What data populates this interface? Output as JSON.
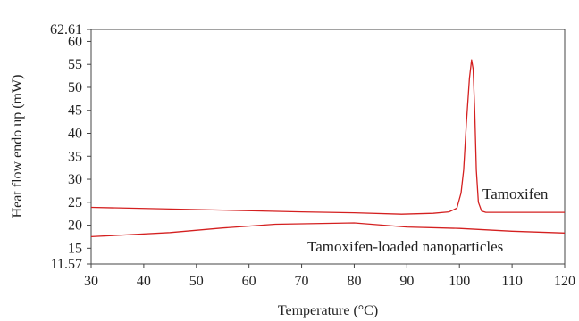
{
  "chart_data": {
    "type": "line",
    "title": "",
    "xlabel": "Temperature (°C)",
    "ylabel": "Heat flow endo up (mW)",
    "xlim": [
      30,
      120
    ],
    "ylim": [
      11.57,
      62.61
    ],
    "x_ticks": [
      "30",
      "40",
      "50",
      "60",
      "70",
      "80",
      "90",
      "100",
      "110",
      "120"
    ],
    "y_ticks": [
      "11.57",
      "15",
      "20",
      "25",
      "30",
      "35",
      "40",
      "45",
      "50",
      "55",
      "60",
      "62.61"
    ],
    "grid": false,
    "series": [
      {
        "name": "Tamoxifen",
        "color": "#d42020",
        "points": [
          [
            30,
            23.9
          ],
          [
            50,
            23.4
          ],
          [
            70,
            22.9
          ],
          [
            80,
            22.7
          ],
          [
            89,
            22.4
          ],
          [
            95,
            22.6
          ],
          [
            98,
            22.9
          ],
          [
            99.5,
            23.7
          ],
          [
            100.3,
            27
          ],
          [
            100.8,
            32
          ],
          [
            101.3,
            42
          ],
          [
            101.9,
            52
          ],
          [
            102.3,
            56
          ],
          [
            102.6,
            54
          ],
          [
            102.9,
            45
          ],
          [
            103.2,
            32
          ],
          [
            103.6,
            25
          ],
          [
            104.2,
            23.1
          ],
          [
            105,
            22.8
          ],
          [
            110,
            22.8
          ],
          [
            120,
            22.8
          ]
        ]
      },
      {
        "name": "Tamoxifen-loaded nanoparticles",
        "color": "#d42020",
        "points": [
          [
            30,
            17.5
          ],
          [
            45,
            18.4
          ],
          [
            55,
            19.4
          ],
          [
            65,
            20.2
          ],
          [
            80,
            20.5
          ],
          [
            90,
            19.6
          ],
          [
            100,
            19.3
          ],
          [
            110,
            18.7
          ],
          [
            115,
            18.5
          ],
          [
            120,
            18.3
          ]
        ]
      }
    ]
  }
}
